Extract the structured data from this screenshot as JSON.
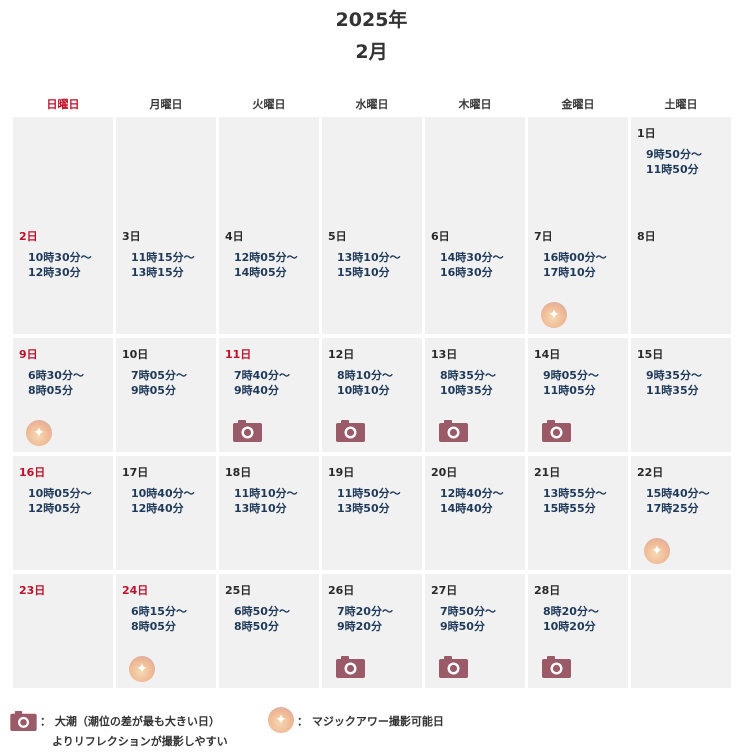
{
  "title": {
    "year": "2025年",
    "month": "2月"
  },
  "weekdays": [
    "日曜日",
    "月曜日",
    "火曜日",
    "水曜日",
    "木曜日",
    "金曜日",
    "土曜日"
  ],
  "colors": {
    "holiday_red": "#c0102a",
    "time_blue": "#1f3a5a",
    "camera": "#9a5a67",
    "cell_bg": "#f1f1f1"
  },
  "weeks": [
    [
      null,
      null,
      null,
      null,
      null,
      null,
      {
        "day": "1日",
        "t1": "9時50分～",
        "t2": "11時50分",
        "red": false,
        "icon": ""
      }
    ],
    [
      {
        "day": "2日",
        "t1": "10時30分～",
        "t2": "12時30分",
        "red": true,
        "icon": ""
      },
      {
        "day": "3日",
        "t1": "11時15分～",
        "t2": "13時15分",
        "red": false,
        "icon": ""
      },
      {
        "day": "4日",
        "t1": "12時05分～",
        "t2": "14時05分",
        "red": false,
        "icon": ""
      },
      {
        "day": "5日",
        "t1": "13時10分～",
        "t2": "15時10分",
        "red": false,
        "icon": ""
      },
      {
        "day": "6日",
        "t1": "14時30分～",
        "t2": "16時30分",
        "red": false,
        "icon": ""
      },
      {
        "day": "7日",
        "t1": "16時00分～",
        "t2": "17時10分",
        "red": false,
        "icon": "magic"
      },
      {
        "day": "8日",
        "t1": "",
        "t2": "",
        "red": false,
        "icon": ""
      }
    ],
    [
      {
        "day": "9日",
        "t1": "6時30分～",
        "t2": "8時05分",
        "red": true,
        "icon": "magic"
      },
      {
        "day": "10日",
        "t1": "7時05分～",
        "t2": "9時05分",
        "red": false,
        "icon": ""
      },
      {
        "day": "11日",
        "t1": "7時40分～",
        "t2": "9時40分",
        "red": true,
        "icon": "camera"
      },
      {
        "day": "12日",
        "t1": "8時10分～",
        "t2": "10時10分",
        "red": false,
        "icon": "camera"
      },
      {
        "day": "13日",
        "t1": "8時35分～",
        "t2": "10時35分",
        "red": false,
        "icon": "camera"
      },
      {
        "day": "14日",
        "t1": "9時05分～",
        "t2": "11時05分",
        "red": false,
        "icon": "camera"
      },
      {
        "day": "15日",
        "t1": "9時35分～",
        "t2": "11時35分",
        "red": false,
        "icon": ""
      }
    ],
    [
      {
        "day": "16日",
        "t1": "10時05分～",
        "t2": "12時05分",
        "red": true,
        "icon": ""
      },
      {
        "day": "17日",
        "t1": "10時40分～",
        "t2": "12時40分",
        "red": false,
        "icon": ""
      },
      {
        "day": "18日",
        "t1": "11時10分～",
        "t2": "13時10分",
        "red": false,
        "icon": ""
      },
      {
        "day": "19日",
        "t1": "11時50分～",
        "t2": "13時50分",
        "red": false,
        "icon": ""
      },
      {
        "day": "20日",
        "t1": "12時40分～",
        "t2": "14時40分",
        "red": false,
        "icon": ""
      },
      {
        "day": "21日",
        "t1": "13時55分～",
        "t2": "15時55分",
        "red": false,
        "icon": ""
      },
      {
        "day": "22日",
        "t1": "15時40分～",
        "t2": "17時25分",
        "red": false,
        "icon": "magic"
      }
    ],
    [
      {
        "day": "23日",
        "t1": "",
        "t2": "",
        "red": true,
        "icon": ""
      },
      {
        "day": "24日",
        "t1": "6時15分～",
        "t2": "8時05分",
        "red": true,
        "icon": "magic"
      },
      {
        "day": "25日",
        "t1": "6時50分～",
        "t2": "8時50分",
        "red": false,
        "icon": ""
      },
      {
        "day": "26日",
        "t1": "7時20分～",
        "t2": "9時20分",
        "red": false,
        "icon": "camera"
      },
      {
        "day": "27日",
        "t1": "7時50分～",
        "t2": "9時50分",
        "red": false,
        "icon": "camera"
      },
      {
        "day": "28日",
        "t1": "8時20分～",
        "t2": "10時20分",
        "red": false,
        "icon": "camera"
      },
      null
    ]
  ],
  "legend": {
    "camera_line1": "： 大潮（潮位の差が最も大きい日）",
    "camera_line2": "よりリフレクションが撮影しやすい",
    "magic_text": "： マジックアワー撮影可能日"
  }
}
